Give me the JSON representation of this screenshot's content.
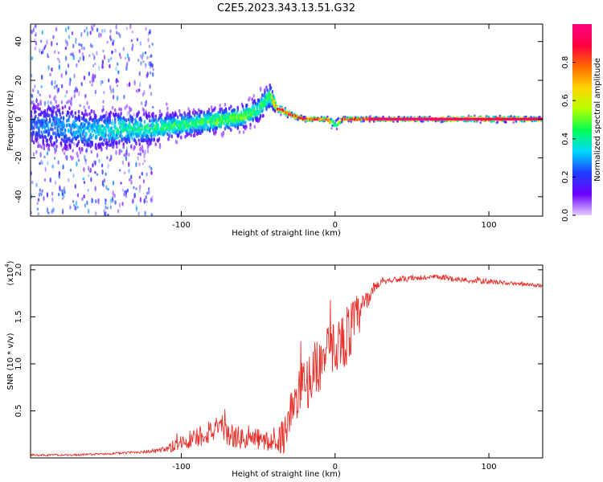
{
  "title": "C2E5.2023.343.13.51.G32",
  "chart_data": [
    {
      "type": "heatmap",
      "title": "",
      "xlabel": "Height of straight line (km)",
      "ylabel": "Frequency (Hz)",
      "xlim": [
        -198,
        135
      ],
      "ylim": [
        -50,
        49
      ],
      "xticks": [
        -100,
        0,
        100
      ],
      "xtick_labels": [
        "-100",
        "0",
        "100"
      ],
      "yticks": [
        -40,
        -20,
        0,
        20,
        40
      ],
      "ytick_labels": [
        "-40",
        "-20",
        "0",
        "20",
        "40"
      ],
      "colorbar": {
        "label": "Normalized spectral amplitude",
        "range": [
          0,
          1
        ],
        "ticks": [
          0.0,
          0.2,
          0.4,
          0.6,
          0.8
        ],
        "tick_labels": [
          "0.0",
          "0.2",
          "0.4",
          "0.6",
          "0.8"
        ],
        "colors": [
          "#e6ccff",
          "#6a00ff",
          "#1f3dff",
          "#00d9ff",
          "#00ff55",
          "#b6ff00",
          "#ffd400",
          "#ff6a00",
          "#ff0040",
          "#ff0080"
        ]
      },
      "ridge": {
        "x": [
          -198,
          -180,
          -160,
          -140,
          -120,
          -100,
          -80,
          -60,
          -50,
          -42,
          -38,
          -33,
          -28,
          -20,
          -12,
          -5,
          0,
          5,
          12,
          30,
          60,
          100,
          135
        ],
        "freq": [
          -3,
          -4,
          -6,
          -5,
          -5,
          -3,
          -1,
          1,
          5,
          12,
          6,
          4,
          2,
          0,
          0,
          0,
          -3,
          0,
          0,
          0,
          0,
          0,
          0
        ],
        "amplitude": [
          0.25,
          0.3,
          0.35,
          0.4,
          0.42,
          0.45,
          0.5,
          0.5,
          0.45,
          0.5,
          0.9,
          0.85,
          0.9,
          0.95,
          0.95,
          0.9,
          0.4,
          0.9,
          0.95,
          1.0,
          1.0,
          0.95,
          0.95
        ],
        "spread": [
          12,
          12,
          10,
          9,
          8,
          6,
          6,
          6,
          6,
          6,
          2,
          2,
          1.5,
          1,
          1,
          1,
          3,
          1,
          1,
          1,
          1,
          1.5,
          1
        ]
      }
    },
    {
      "type": "line",
      "title": "",
      "xlabel": "Height of straight line (km)",
      "ylabel": "SNR (10 * v/v)",
      "scale_label": "(x10",
      "scale_exponent": "4",
      "xlim": [
        -198,
        135
      ],
      "ylim": [
        0,
        2.05
      ],
      "xticks": [
        -100,
        0,
        100
      ],
      "xtick_labels": [
        "-100",
        "0",
        "100"
      ],
      "yticks": [
        0.5,
        1.0,
        1.5,
        2.0
      ],
      "ytick_labels": [
        "0.5",
        "1.0",
        "1.5",
        "2.0"
      ],
      "series": [
        {
          "name": "SNR",
          "color": "#e8302a",
          "x": [
            -198,
            -170,
            -140,
            -120,
            -110,
            -100,
            -90,
            -80,
            -70,
            -60,
            -50,
            -40,
            -33,
            -30,
            -25,
            -20,
            -15,
            -10,
            -5,
            0,
            5,
            10,
            15,
            20,
            25,
            30,
            40,
            50,
            60,
            70,
            80,
            90,
            100,
            110,
            120,
            135
          ],
          "y": [
            0.03,
            0.03,
            0.05,
            0.07,
            0.08,
            0.17,
            0.22,
            0.3,
            0.25,
            0.2,
            0.2,
            0.15,
            0.25,
            0.45,
            0.6,
            0.75,
            0.9,
            1.0,
            1.1,
            1.2,
            1.25,
            1.35,
            1.5,
            1.65,
            1.8,
            1.88,
            1.9,
            1.9,
            1.92,
            1.92,
            1.9,
            1.88,
            1.88,
            1.86,
            1.85,
            1.83
          ],
          "noise": [
            0.01,
            0.01,
            0.01,
            0.02,
            0.04,
            0.1,
            0.12,
            0.15,
            0.13,
            0.12,
            0.12,
            0.1,
            0.2,
            0.25,
            0.3,
            0.3,
            0.3,
            0.3,
            0.3,
            0.28,
            0.3,
            0.35,
            0.25,
            0.1,
            0.06,
            0.04,
            0.03,
            0.03,
            0.03,
            0.03,
            0.03,
            0.03,
            0.03,
            0.02,
            0.02,
            0.02
          ]
        }
      ]
    }
  ]
}
